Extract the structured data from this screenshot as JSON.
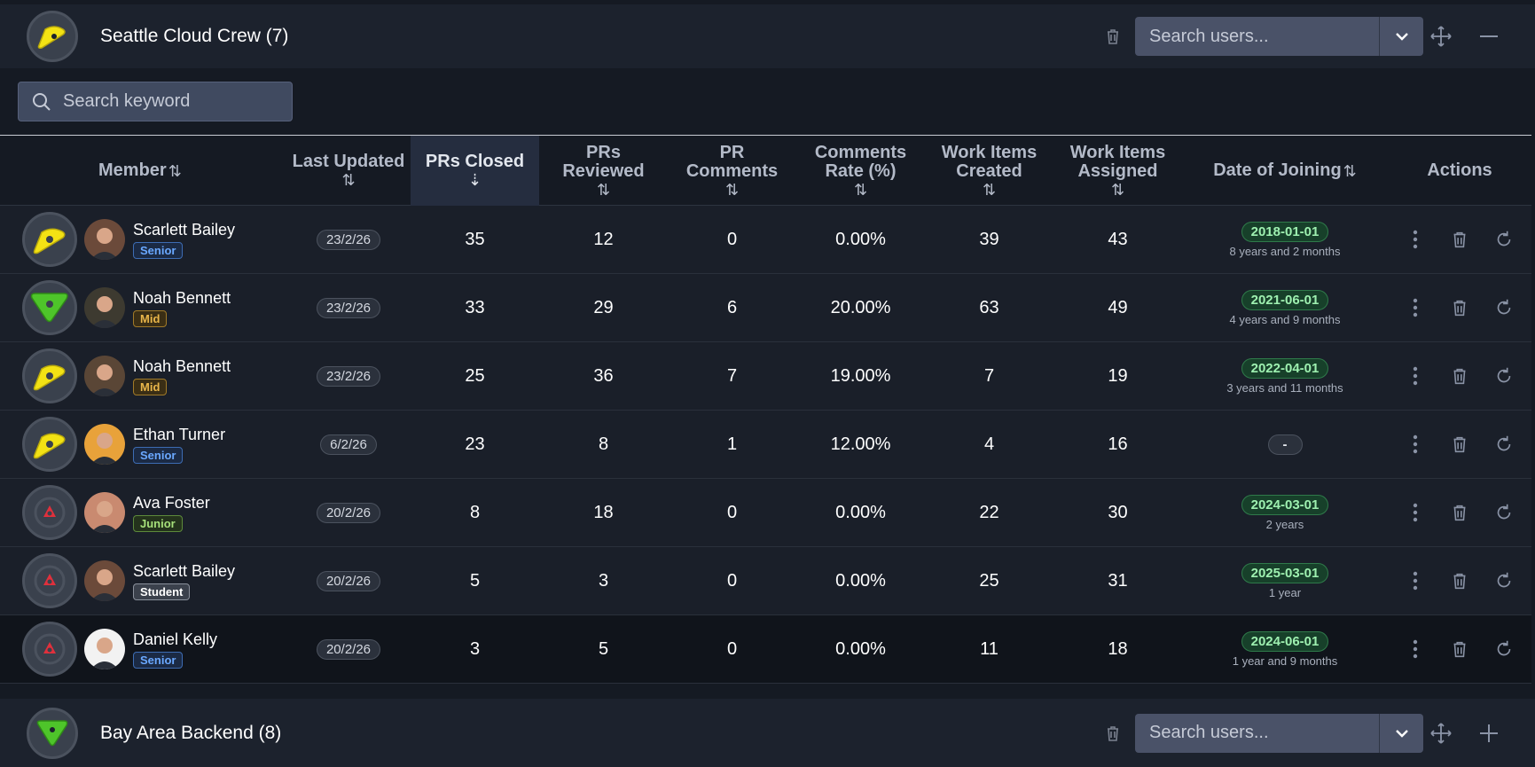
{
  "colors": {
    "accent": "#252d3f",
    "green_pill": "#17402a",
    "senior": "#6aa8ff",
    "mid": "#e8b54a",
    "junior": "#a6e07a"
  },
  "top_team": {
    "name": "Seattle Cloud Crew (7)",
    "badge_icon": "yellow-triangle-badge-icon",
    "search_placeholder": "Search users..."
  },
  "bottom_team": {
    "name": "Bay Area Backend (8)",
    "badge_icon": "green-triangle-badge-icon",
    "search_placeholder": "Search users..."
  },
  "keyword_search": {
    "placeholder": "Search keyword"
  },
  "columns": {
    "member": "Member",
    "last_updated": "Last Updated",
    "prs_closed": "PRs Closed",
    "prs_reviewed_1": "PRs",
    "prs_reviewed_2": "Reviewed",
    "pr_comments_1": "PR",
    "pr_comments_2": "Comments",
    "comments_rate_1": "Comments",
    "comments_rate_2": "Rate (%)",
    "wi_created_1": "Work Items",
    "wi_created_2": "Created",
    "wi_assigned_1": "Work Items",
    "wi_assigned_2": "Assigned",
    "date_joining": "Date of Joining",
    "actions": "Actions"
  },
  "rows": [
    {
      "badge": "yellow",
      "name": "Scarlett Bailey",
      "level": "Senior",
      "updated": "23/2/26",
      "prs_closed": "35",
      "prs_reviewed": "12",
      "pr_comments": "0",
      "rate": "0.00%",
      "created": "39",
      "assigned": "43",
      "joined": "2018-01-01",
      "ago": "8 years and 2 months"
    },
    {
      "badge": "green",
      "name": "Noah Bennett",
      "level": "Mid",
      "updated": "23/2/26",
      "prs_closed": "33",
      "prs_reviewed": "29",
      "pr_comments": "6",
      "rate": "20.00%",
      "created": "63",
      "assigned": "49",
      "joined": "2021-06-01",
      "ago": "4 years and 9 months"
    },
    {
      "badge": "yellow",
      "name": "Noah Bennett",
      "level": "Mid",
      "updated": "23/2/26",
      "prs_closed": "25",
      "prs_reviewed": "36",
      "pr_comments": "7",
      "rate": "19.00%",
      "created": "7",
      "assigned": "19",
      "joined": "2022-04-01",
      "ago": "3 years and 11 months"
    },
    {
      "badge": "yellow",
      "name": "Ethan Turner",
      "level": "Senior",
      "updated": "6/2/26",
      "prs_closed": "23",
      "prs_reviewed": "8",
      "pr_comments": "1",
      "rate": "12.00%",
      "created": "4",
      "assigned": "16",
      "joined": "-",
      "ago": ""
    },
    {
      "badge": "red",
      "name": "Ava Foster",
      "level": "Junior",
      "updated": "20/2/26",
      "prs_closed": "8",
      "prs_reviewed": "18",
      "pr_comments": "0",
      "rate": "0.00%",
      "created": "22",
      "assigned": "30",
      "joined": "2024-03-01",
      "ago": "2 years"
    },
    {
      "badge": "red",
      "name": "Scarlett Bailey",
      "level": "Student",
      "updated": "20/2/26",
      "prs_closed": "5",
      "prs_reviewed": "3",
      "pr_comments": "0",
      "rate": "0.00%",
      "created": "25",
      "assigned": "31",
      "joined": "2025-03-01",
      "ago": "1 year"
    },
    {
      "badge": "red",
      "name": "Daniel Kelly",
      "level": "Senior",
      "updated": "20/2/26",
      "prs_closed": "3",
      "prs_reviewed": "5",
      "pr_comments": "0",
      "rate": "0.00%",
      "created": "11",
      "assigned": "18",
      "joined": "2024-06-01",
      "ago": "1 year and 9 months"
    }
  ]
}
